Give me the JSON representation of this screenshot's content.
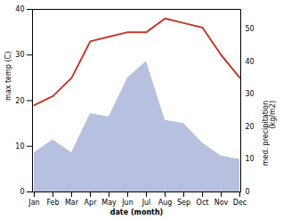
{
  "chart_data": {
    "type": "line",
    "categories": [
      "Jan",
      "Feb",
      "Mar",
      "Apr",
      "May",
      "Jun",
      "Jul",
      "Aug",
      "Sep",
      "Oct",
      "Nov",
      "Dec"
    ],
    "xlabel": "date (month)",
    "ylabel": "max temp (C)",
    "y2label": "med. precipitation\n(kg/m2)",
    "ylim": [
      0,
      40
    ],
    "yticks": [
      0,
      10,
      20,
      30,
      40
    ],
    "y2lim": [
      0,
      56
    ],
    "y2ticks": [
      0,
      10,
      20,
      30,
      40,
      50
    ],
    "series": [
      {
        "type": "area",
        "axis": "y2",
        "color": "#b8c0e0",
        "values": [
          12,
          16,
          12,
          24,
          23,
          35,
          40,
          22,
          21,
          15,
          11,
          10
        ]
      },
      {
        "type": "line",
        "color": "#c0392b",
        "values": [
          19,
          21,
          25,
          33,
          34,
          35,
          35,
          38,
          37,
          36,
          30,
          25
        ]
      }
    ]
  }
}
